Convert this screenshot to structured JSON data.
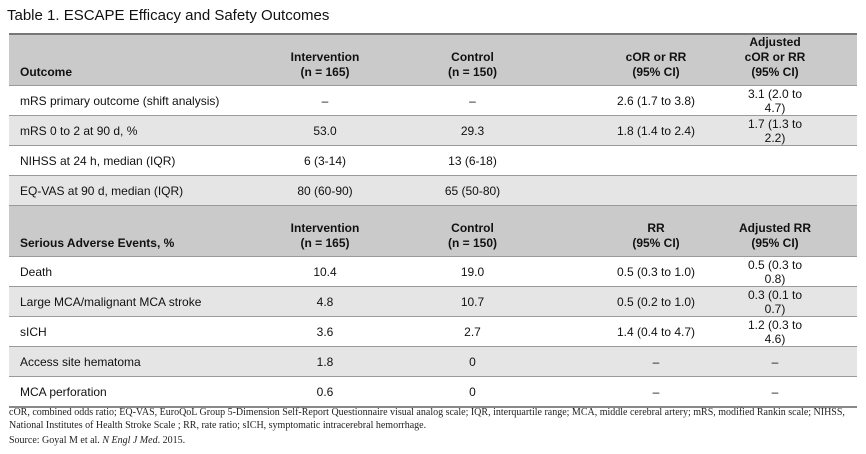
{
  "title": "Table 1.  ESCAPE Efficacy and Safety Outcomes",
  "efficacy": {
    "headers": [
      [
        "Outcome",
        ""
      ],
      [
        "Intervention",
        "(n = 165)"
      ],
      [
        "Control",
        "(n = 150)"
      ],
      [
        "cOR or RR",
        "(95% CI)"
      ],
      [
        "Adjusted cOR or RR",
        "(95% CI)"
      ]
    ],
    "rows": [
      [
        "mRS primary outcome (shift analysis)",
        "–",
        "–",
        "2.6 (1.7 to 3.8)",
        "3.1 (2.0 to 4.7)"
      ],
      [
        "mRS 0 to 2 at 90 d, %",
        "53.0",
        "29.3",
        "1.8 (1.4 to 2.4)",
        "1.7 (1.3 to 2.2)"
      ],
      [
        "NIHSS at 24 h, median (IQR)",
        "6 (3-14)",
        "13 (6-18)",
        "",
        ""
      ],
      [
        "EQ-VAS at 90 d, median (IQR)",
        "80 (60-90)",
        "65 (50-80)",
        "",
        ""
      ]
    ]
  },
  "safety": {
    "headers": [
      [
        "Serious Adverse Events, %",
        ""
      ],
      [
        "Intervention",
        "(n = 165)"
      ],
      [
        "Control",
        "(n = 150)"
      ],
      [
        "RR",
        "(95% CI)"
      ],
      [
        "Adjusted RR",
        "(95% CI)"
      ]
    ],
    "rows": [
      [
        "Death",
        "10.4",
        "19.0",
        "0.5 (0.3 to 1.0)",
        "0.5 (0.3 to 0.8)"
      ],
      [
        "Large MCA/malignant MCA stroke",
        "4.8",
        "10.7",
        "0.5 (0.2 to 1.0)",
        "0.3 (0.1 to 0.7)"
      ],
      [
        "sICH",
        "3.6",
        "2.7",
        "1.4 (0.4 to 4.7)",
        "1.2 (0.3 to 4.6)"
      ],
      [
        "Access site hematoma",
        "1.8",
        "0",
        "–",
        "–"
      ],
      [
        "MCA perforation",
        "0.6",
        "0",
        "–",
        "–"
      ]
    ]
  },
  "footnote": "cOR, combined odds ratio; EQ-VAS, EuroQoL Group 5-Dimension Self-Report Questionnaire visual analog scale; IQR, interquartile range; MCA, middle cerebral artery; mRS, modified Rankin scale; NIHSS, National Institutes of Health Stroke Scale ; RR, rate ratio; sICH, symptomatic intracerebral hemorrhage.",
  "source": {
    "prefix": "Source: Goyal M et al. ",
    "journal": "N Engl J Med",
    "suffix": ". 2015."
  }
}
